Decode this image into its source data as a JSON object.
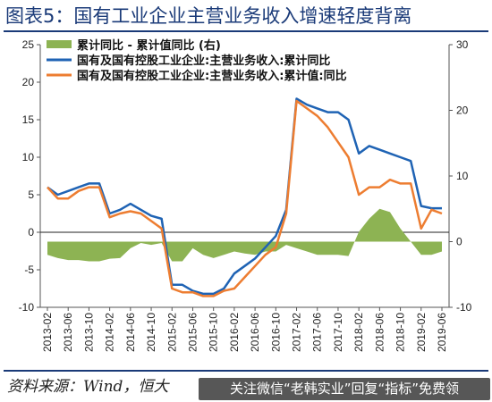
{
  "figure": {
    "title": "图表5：国有工业企业主营业务收入增速轻度背离",
    "source": "资料来源：Wind，恒大",
    "watermark": "关注微信“老韩实业”回复“指标”免费领"
  },
  "chart_data": {
    "type": "line",
    "x": [
      "2013-02",
      "2013-04",
      "2013-06",
      "2013-08",
      "2013-10",
      "2013-12",
      "2014-02",
      "2014-04",
      "2014-06",
      "2014-08",
      "2014-10",
      "2014-12",
      "2015-02",
      "2015-04",
      "2015-06",
      "2015-08",
      "2015-10",
      "2015-12",
      "2016-02",
      "2016-04",
      "2016-06",
      "2016-08",
      "2016-10",
      "2016-12",
      "2017-02",
      "2017-04",
      "2017-06",
      "2017-08",
      "2017-10",
      "2017-12",
      "2018-02",
      "2018-04",
      "2018-06",
      "2018-08",
      "2018-10",
      "2018-12",
      "2019-02",
      "2019-04",
      "2019-06"
    ],
    "xticks": [
      "2013-02",
      "2013-06",
      "2013-10",
      "2014-02",
      "2014-06",
      "2014-10",
      "2015-02",
      "2015-06",
      "2015-10",
      "2016-02",
      "2016-06",
      "2016-10",
      "2017-02",
      "2017-06",
      "2017-10",
      "2018-02",
      "2018-06",
      "2018-10",
      "2019-02",
      "2019-06"
    ],
    "ylim_left": [
      -10,
      25
    ],
    "yticks_left": [
      -10,
      -5,
      0,
      5,
      10,
      15,
      20,
      25
    ],
    "ylim_right": [
      -10,
      30
    ],
    "yticks_right": [
      -10,
      0,
      10,
      20,
      30
    ],
    "grid": false,
    "legend_position": "top-left",
    "series": [
      {
        "name": "累计同比 - 累计值同比 (右)",
        "kind": "area",
        "axis": "right",
        "color": "#8db353",
        "values": [
          -2.0,
          -2.5,
          -2.8,
          -2.8,
          -3.0,
          -3.0,
          -2.6,
          -2.5,
          -1.0,
          -0.2,
          -0.5,
          -0.2,
          -3.0,
          -3.0,
          -1.0,
          -2.0,
          -2.5,
          -2.0,
          -1.5,
          -1.8,
          -2.0,
          -1.5,
          -1.5,
          -0.5,
          -1.0,
          -1.5,
          -2.0,
          -2.0,
          -2.0,
          -2.2,
          1.5,
          3.5,
          5.0,
          4.5,
          2.0,
          0.0,
          -2.0,
          -2.0,
          -1.5
        ]
      },
      {
        "name": "国有及国有控股工业企业:主营业务收入:累计同比",
        "kind": "line",
        "axis": "left",
        "color": "#1f63b4",
        "values": [
          6.0,
          5.0,
          5.5,
          6.0,
          6.5,
          6.5,
          2.5,
          3.0,
          3.8,
          3.0,
          2.2,
          1.8,
          -7.0,
          -7.0,
          -7.8,
          -8.2,
          -8.2,
          -7.5,
          -5.5,
          -4.5,
          -3.5,
          -2.0,
          -0.5,
          3.0,
          17.8,
          17.0,
          16.5,
          16.0,
          16.0,
          15.0,
          10.5,
          11.5,
          11.0,
          10.5,
          10.0,
          9.5,
          3.5,
          3.2,
          3.2
        ]
      },
      {
        "name": "国有及国有控股工业企业:主营业务收入:累计值:同比",
        "kind": "line",
        "axis": "left",
        "color": "#ed7d31",
        "values": [
          6.0,
          4.5,
          4.5,
          5.5,
          6.0,
          6.0,
          2.0,
          2.5,
          2.8,
          2.5,
          1.5,
          0.5,
          -7.5,
          -8.0,
          -8.0,
          -8.5,
          -8.5,
          -7.8,
          -7.5,
          -6.0,
          -4.5,
          -3.0,
          -2.0,
          2.5,
          17.5,
          16.5,
          15.5,
          14.0,
          12.0,
          10.0,
          5.0,
          6.0,
          6.0,
          7.0,
          6.5,
          6.5,
          0.5,
          3.0,
          2.5
        ]
      }
    ]
  }
}
